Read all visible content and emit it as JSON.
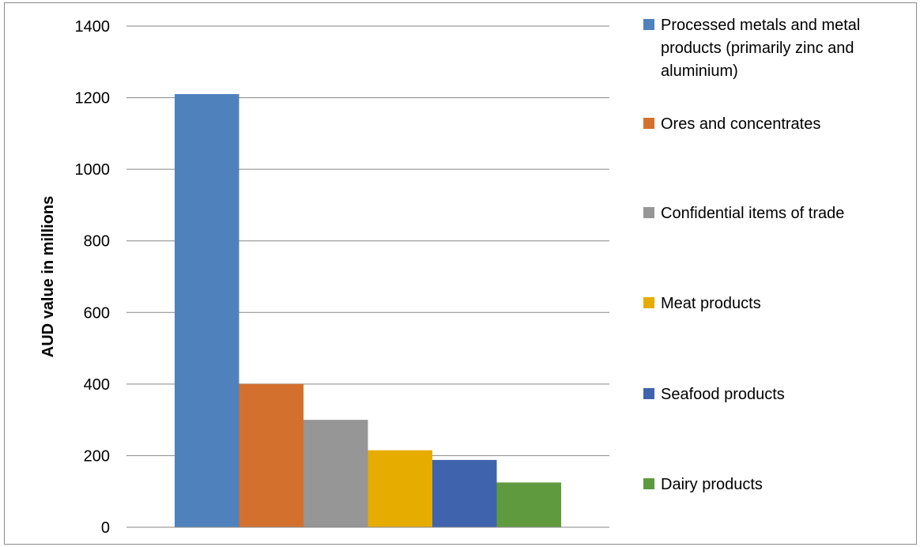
{
  "chart_data": {
    "type": "bar",
    "title": "",
    "xlabel": "",
    "ylabel": "AUD value in millions",
    "ylim": [
      0,
      1400
    ],
    "yticks": [
      0,
      200,
      400,
      600,
      800,
      1000,
      1200,
      1400
    ],
    "grid": true,
    "legend_position": "right",
    "series": [
      {
        "name": "Processed metals and metal products (primarily zinc and aluminium)",
        "legend_lines": [
          "Processed metals and metal",
          "products (primarily zinc and",
          "aluminium)"
        ],
        "value": 1210,
        "color": "#4F81BD"
      },
      {
        "name": "Ores and concentrates",
        "legend_lines": [
          "Ores and concentrates"
        ],
        "value": 400,
        "color": "#D4702E"
      },
      {
        "name": "Confidential items of trade",
        "legend_lines": [
          "Confidential items of trade"
        ],
        "value": 300,
        "color": "#969696"
      },
      {
        "name": "Meat products",
        "legend_lines": [
          "Meat products"
        ],
        "value": 215,
        "color": "#E6AC00"
      },
      {
        "name": "Seafood products",
        "legend_lines": [
          "Seafood products"
        ],
        "value": 188,
        "color": "#3F64AD"
      },
      {
        "name": "Dairy products",
        "legend_lines": [
          "Dairy products"
        ],
        "value": 125,
        "color": "#5F9B3E"
      }
    ]
  }
}
